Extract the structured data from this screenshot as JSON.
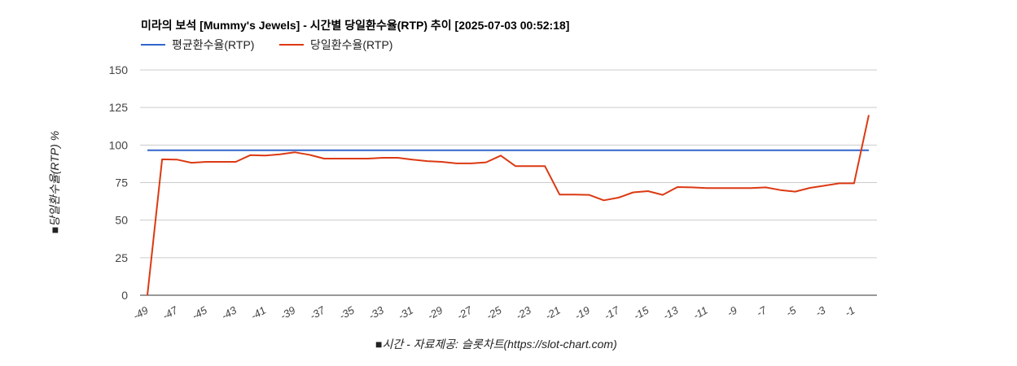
{
  "chart_data": {
    "type": "line",
    "title": "미라의 보석 [Mummy's Jewels] - 시간별 당일환수율(RTP) 추이 [2025-07-03 00:52:18]",
    "xlabel": "■시간 - 자료제공: 슬롯차트(https://slot-chart.com)",
    "ylabel": "■당일환수율(RTP) %",
    "ylim": [
      0,
      150
    ],
    "yticks": [
      "0",
      "25",
      "50",
      "75",
      "100",
      "125",
      "150"
    ],
    "xlim": [
      -49,
      0
    ],
    "xticks": [
      "-49",
      "-47",
      "-45",
      "-43",
      "-41",
      "-39",
      "-37",
      "-35",
      "-33",
      "-31",
      "-29",
      "-27",
      "-25",
      "-23",
      "-21",
      "-19",
      "-17",
      "-15",
      "-13",
      "-11",
      "-9",
      "-7",
      "-5",
      "-3",
      "-1"
    ],
    "legend_position": "top-left",
    "x": [
      -49,
      -48,
      -47,
      -46,
      -45,
      -44,
      -43,
      -42,
      -41,
      -40,
      -39,
      -38,
      -37,
      -36,
      -35,
      -34,
      -33,
      -32,
      -31,
      -30,
      -29,
      -28,
      -27,
      -26,
      -25,
      -24,
      -23,
      -22,
      -21,
      -20,
      -19,
      -18,
      -17,
      -16,
      -15,
      -14,
      -13,
      -12,
      -11,
      -10,
      -9,
      -8,
      -7,
      -6,
      -5,
      -4,
      -3,
      -2,
      -1,
      0
    ],
    "series": [
      {
        "name": "평균환수율(RTP)",
        "color": "#3366cc",
        "values": [
          96.5,
          96.5,
          96.5,
          96.5,
          96.5,
          96.5,
          96.5,
          96.5,
          96.5,
          96.5,
          96.5,
          96.5,
          96.5,
          96.5,
          96.5,
          96.5,
          96.5,
          96.5,
          96.5,
          96.5,
          96.5,
          96.5,
          96.5,
          96.5,
          96.5,
          96.5,
          96.5,
          96.5,
          96.5,
          96.5,
          96.5,
          96.5,
          96.5,
          96.5,
          96.5,
          96.5,
          96.5,
          96.5,
          96.5,
          96.5,
          96.5,
          96.5,
          96.5,
          96.5,
          96.5,
          96.5,
          96.5,
          96.5,
          96.5,
          96.5
        ]
      },
      {
        "name": "당일환수율(RTP)",
        "color": "#dc3912",
        "values": [
          0,
          90.5,
          90.3,
          88.2,
          88.8,
          88.8,
          88.8,
          93.3,
          93,
          93.8,
          95.2,
          93.5,
          91,
          91,
          91,
          91,
          91.5,
          91.5,
          90.3,
          89.3,
          88.8,
          87.8,
          87.8,
          88.5,
          93,
          86,
          86,
          86,
          67,
          67,
          66.8,
          63.2,
          65,
          68.5,
          69.3,
          66.8,
          72,
          71.8,
          71.3,
          71.3,
          71.3,
          71.3,
          71.8,
          70,
          69,
          71.5,
          73,
          74.5,
          74.5,
          120
        ]
      }
    ]
  }
}
